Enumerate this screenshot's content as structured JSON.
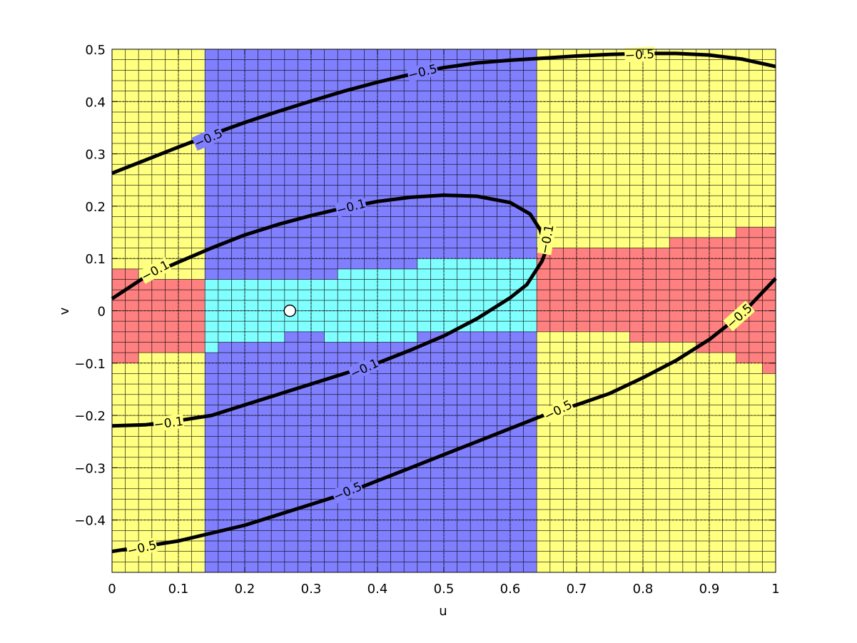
{
  "chart_data": {
    "type": "contour",
    "title": "",
    "xlabel": "u",
    "ylabel": "v",
    "xlim": [
      0,
      1
    ],
    "ylim": [
      -0.5,
      0.5
    ],
    "grid": true,
    "background_cell_size": 0.02,
    "x_ticks": [
      0,
      0.1,
      0.2,
      0.3,
      0.4,
      0.5,
      0.6,
      0.7,
      0.8,
      0.9,
      1
    ],
    "x_tick_labels": [
      "0",
      "0.1",
      "0.2",
      "0.3",
      "0.4",
      "0.5",
      "0.6",
      "0.7",
      "0.8",
      "0.9",
      "1"
    ],
    "y_ticks": [
      0.5,
      0.4,
      0.3,
      0.2,
      0.1,
      0,
      -0.1,
      -0.2,
      -0.3,
      -0.4
    ],
    "y_tick_labels": [
      "0.5",
      "0.4",
      "0.3",
      "0.2",
      "0.1",
      "0",
      "−0.1",
      "−0.2",
      "−0.3",
      "−0.4"
    ],
    "colors": {
      "yellow": "#ffff80",
      "blue": "#8080ff",
      "cyan": "#80ffff",
      "red": "#ff8080",
      "cell_grid": "#000000",
      "contour": "#000000"
    },
    "regions": [
      {
        "name": "yellow-left",
        "color": "yellow",
        "u": [
          0,
          0.14
        ],
        "v": [
          -0.5,
          0.5
        ]
      },
      {
        "name": "blue-band",
        "color": "blue",
        "u": [
          0.14,
          0.64
        ],
        "v": [
          -0.5,
          0.5
        ]
      },
      {
        "name": "yellow-right",
        "color": "yellow",
        "u": [
          0.64,
          1.0
        ],
        "v": [
          -0.5,
          0.5
        ]
      },
      {
        "name": "red-left-upper",
        "color": "red",
        "u": [
          0,
          0.04
        ],
        "v": [
          -0.1,
          0.08
        ]
      },
      {
        "name": "red-left-main",
        "color": "red",
        "u": [
          0.04,
          0.14
        ],
        "v": [
          -0.08,
          0.06
        ]
      },
      {
        "name": "cyan-1",
        "color": "cyan",
        "u": [
          0.14,
          0.16
        ],
        "v": [
          -0.08,
          0.06
        ]
      },
      {
        "name": "cyan-2",
        "color": "cyan",
        "u": [
          0.16,
          0.26
        ],
        "v": [
          -0.06,
          0.06
        ]
      },
      {
        "name": "cyan-3",
        "color": "cyan",
        "u": [
          0.26,
          0.32
        ],
        "v": [
          -0.04,
          0.06
        ]
      },
      {
        "name": "cyan-4",
        "color": "cyan",
        "u": [
          0.32,
          0.34
        ],
        "v": [
          -0.06,
          0.06
        ]
      },
      {
        "name": "cyan-5",
        "color": "cyan",
        "u": [
          0.34,
          0.46
        ],
        "v": [
          -0.06,
          0.08
        ]
      },
      {
        "name": "cyan-6",
        "color": "cyan",
        "u": [
          0.46,
          0.64
        ],
        "v": [
          -0.04,
          0.1
        ]
      },
      {
        "name": "red-right-1",
        "color": "red",
        "u": [
          0.64,
          0.7
        ],
        "v": [
          -0.04,
          0.12
        ]
      },
      {
        "name": "red-right-2",
        "color": "red",
        "u": [
          0.7,
          0.78
        ],
        "v": [
          -0.04,
          0.12
        ]
      },
      {
        "name": "red-right-3",
        "color": "red",
        "u": [
          0.78,
          0.84
        ],
        "v": [
          -0.06,
          0.12
        ]
      },
      {
        "name": "red-right-4",
        "color": "red",
        "u": [
          0.84,
          0.88
        ],
        "v": [
          -0.06,
          0.14
        ]
      },
      {
        "name": "red-right-5",
        "color": "red",
        "u": [
          0.88,
          0.94
        ],
        "v": [
          -0.08,
          0.14
        ]
      },
      {
        "name": "red-right-6",
        "color": "red",
        "u": [
          0.94,
          0.96
        ],
        "v": [
          -0.1,
          0.16
        ]
      },
      {
        "name": "red-right-7",
        "color": "red",
        "u": [
          0.96,
          0.98
        ],
        "v": [
          -0.1,
          0.16
        ]
      },
      {
        "name": "red-right-8",
        "color": "red",
        "u": [
          0.98,
          1.0
        ],
        "v": [
          -0.12,
          0.16
        ]
      }
    ],
    "contours": [
      {
        "name": "contour-upper",
        "level_label": "−0.5",
        "points": [
          [
            0,
            0.263
          ],
          [
            0.05,
            0.288
          ],
          [
            0.1,
            0.313
          ],
          [
            0.15,
            0.337
          ],
          [
            0.2,
            0.36
          ],
          [
            0.25,
            0.381
          ],
          [
            0.3,
            0.401
          ],
          [
            0.35,
            0.42
          ],
          [
            0.4,
            0.437
          ],
          [
            0.45,
            0.452
          ],
          [
            0.5,
            0.465
          ],
          [
            0.55,
            0.474
          ],
          [
            0.6,
            0.479
          ],
          [
            0.65,
            0.483
          ],
          [
            0.7,
            0.487
          ],
          [
            0.75,
            0.49
          ],
          [
            0.8,
            0.492
          ],
          [
            0.85,
            0.492
          ],
          [
            0.9,
            0.489
          ],
          [
            0.95,
            0.481
          ],
          [
            1.0,
            0.467
          ]
        ]
      },
      {
        "name": "contour-inner-upper",
        "level_label": "−0.1",
        "points": [
          [
            0,
            0.023
          ],
          [
            0.05,
            0.065
          ],
          [
            0.1,
            0.093
          ],
          [
            0.15,
            0.12
          ],
          [
            0.2,
            0.145
          ],
          [
            0.25,
            0.165
          ],
          [
            0.3,
            0.182
          ],
          [
            0.35,
            0.197
          ],
          [
            0.4,
            0.209
          ],
          [
            0.45,
            0.217
          ],
          [
            0.5,
            0.221
          ],
          [
            0.55,
            0.219
          ],
          [
            0.6,
            0.207
          ],
          [
            0.63,
            0.185
          ],
          [
            0.645,
            0.155
          ],
          [
            0.652,
            0.128
          ],
          [
            0.654,
            0.115
          ]
        ]
      },
      {
        "name": "contour-inner-lower",
        "level_label": "−0.1",
        "points": [
          [
            0.654,
            0.115
          ],
          [
            0.648,
            0.095
          ],
          [
            0.625,
            0.05
          ],
          [
            0.6,
            0.025
          ],
          [
            0.55,
            -0.015
          ],
          [
            0.5,
            -0.048
          ],
          [
            0.45,
            -0.075
          ],
          [
            0.4,
            -0.1
          ],
          [
            0.35,
            -0.12
          ],
          [
            0.3,
            -0.14
          ],
          [
            0.25,
            -0.16
          ],
          [
            0.2,
            -0.18
          ],
          [
            0.15,
            -0.2
          ],
          [
            0.1,
            -0.21
          ],
          [
            0.05,
            -0.218
          ],
          [
            0,
            -0.22
          ]
        ]
      },
      {
        "name": "contour-lower",
        "level_label": "−0.5",
        "points": [
          [
            0,
            -0.46
          ],
          [
            0.05,
            -0.45
          ],
          [
            0.1,
            -0.44
          ],
          [
            0.15,
            -0.425
          ],
          [
            0.2,
            -0.41
          ],
          [
            0.25,
            -0.39
          ],
          [
            0.3,
            -0.37
          ],
          [
            0.35,
            -0.35
          ],
          [
            0.4,
            -0.325
          ],
          [
            0.45,
            -0.3
          ],
          [
            0.5,
            -0.275
          ],
          [
            0.55,
            -0.25
          ],
          [
            0.6,
            -0.225
          ],
          [
            0.65,
            -0.2
          ],
          [
            0.7,
            -0.18
          ],
          [
            0.75,
            -0.158
          ],
          [
            0.8,
            -0.128
          ],
          [
            0.85,
            -0.095
          ],
          [
            0.9,
            -0.055
          ],
          [
            0.95,
            -0.005
          ],
          [
            1.0,
            0.062
          ]
        ]
      }
    ],
    "contour_labels": [
      {
        "text": "−0.5",
        "u": 0.145,
        "v": 0.33,
        "angle": -24
      },
      {
        "text": "−0.5",
        "u": 0.468,
        "v": 0.457,
        "angle": -14
      },
      {
        "text": "−0.5",
        "u": 0.795,
        "v": 0.49,
        "angle": -3
      },
      {
        "text": "−0.1",
        "u": 0.065,
        "v": 0.077,
        "angle": -28
      },
      {
        "text": "−0.1",
        "u": 0.36,
        "v": 0.199,
        "angle": -15
      },
      {
        "text": "−0.1",
        "u": 0.655,
        "v": 0.137,
        "angle": -80
      },
      {
        "text": "−0.1",
        "u": 0.38,
        "v": -0.11,
        "angle": -25
      },
      {
        "text": "−0.1",
        "u": 0.085,
        "v": -0.214,
        "angle": -7
      },
      {
        "text": "−0.5",
        "u": 0.045,
        "v": -0.453,
        "angle": -13
      },
      {
        "text": "−0.5",
        "u": 0.355,
        "v": -0.345,
        "angle": -23
      },
      {
        "text": "−0.5",
        "u": 0.672,
        "v": -0.19,
        "angle": -27
      },
      {
        "text": "−0.5",
        "u": 0.945,
        "v": -0.01,
        "angle": -42
      }
    ],
    "marker": {
      "u": 0.268,
      "v": 0.0,
      "color": "#ffffff"
    }
  }
}
